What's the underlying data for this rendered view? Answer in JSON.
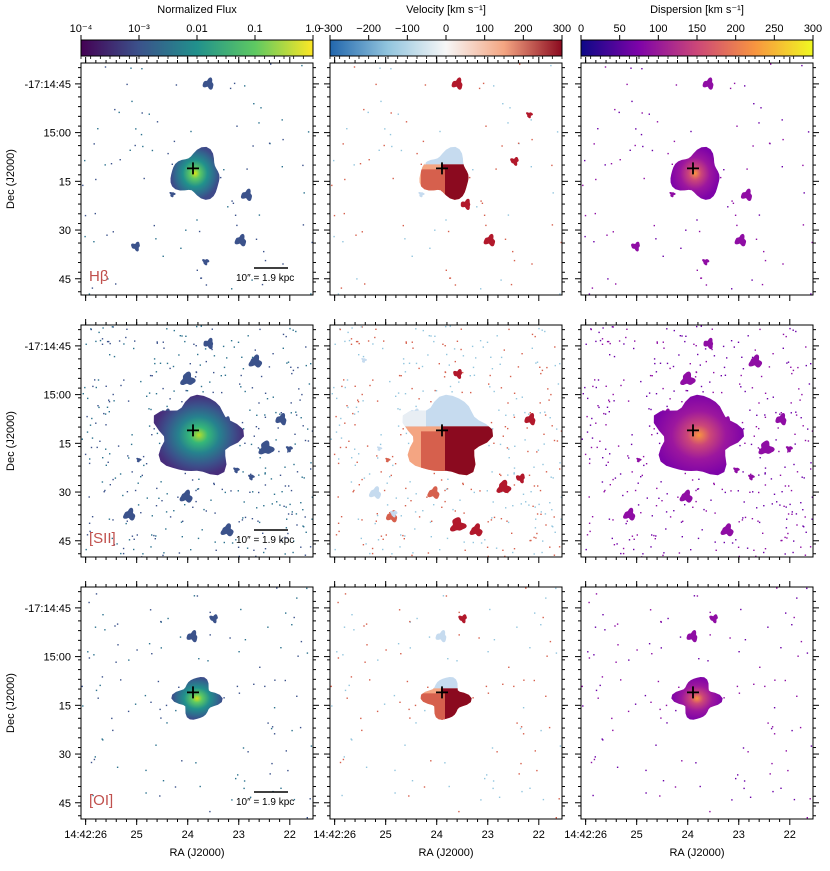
{
  "colors": {
    "title_red": "#c0504d",
    "frame": "#000000",
    "marker": "#000000"
  },
  "chart_data": {
    "type": "heatmap",
    "description_rows": [
      "Hβ",
      "[SII]",
      "[OI]"
    ],
    "colorbars": [
      {
        "label": "Normalized Flux",
        "scale": "log",
        "range": [
          0.0001,
          1.0
        ],
        "ticks": [
          {
            "v": 0.0001,
            "label": "10⁻⁴"
          },
          {
            "v": 0.001,
            "label": "10⁻³"
          },
          {
            "v": 0.01,
            "label": "0.01"
          },
          {
            "v": 0.1,
            "label": "0.1"
          },
          {
            "v": 1.0,
            "label": "1.0"
          }
        ],
        "colormap": "viridis"
      },
      {
        "label": "Velocity [km s⁻¹]",
        "scale": "linear",
        "range": [
          -300,
          300
        ],
        "ticks": [
          {
            "v": -300,
            "label": "−300"
          },
          {
            "v": -200,
            "label": "−200"
          },
          {
            "v": -100,
            "label": "−100"
          },
          {
            "v": 0,
            "label": "0"
          },
          {
            "v": 100,
            "label": "100"
          },
          {
            "v": 200,
            "label": "200"
          },
          {
            "v": 300,
            "label": "300"
          }
        ],
        "colormap": "RdBu_r"
      },
      {
        "label": "Dispersion [km s⁻¹]",
        "scale": "linear",
        "range": [
          0,
          300
        ],
        "ticks": [
          {
            "v": 0,
            "label": "0"
          },
          {
            "v": 50,
            "label": "50"
          },
          {
            "v": 100,
            "label": "100"
          },
          {
            "v": 150,
            "label": "150"
          },
          {
            "v": 200,
            "label": "200"
          },
          {
            "v": 250,
            "label": "250"
          },
          {
            "v": 300,
            "label": "300"
          }
        ],
        "colormap": "plasma"
      }
    ],
    "rows": [
      {
        "line": "Hβ",
        "scalebar": "10″ = 1.9 kpc"
      },
      {
        "line": "[SII]",
        "scalebar": "10″ = 1.9 kpc"
      },
      {
        "line": "[OI]",
        "scalebar": "10″ = 1.9 kpc"
      }
    ],
    "xaxis": {
      "label": "RA (J2000)",
      "ticks": [
        "14:42:26",
        "25",
        "24",
        "23",
        "22"
      ]
    },
    "yaxis": {
      "label": "Dec (J2000)",
      "ticks": [
        "-17:14:45",
        "15:00",
        "15",
        "30",
        "45"
      ]
    },
    "nucleus_marker": "+"
  }
}
